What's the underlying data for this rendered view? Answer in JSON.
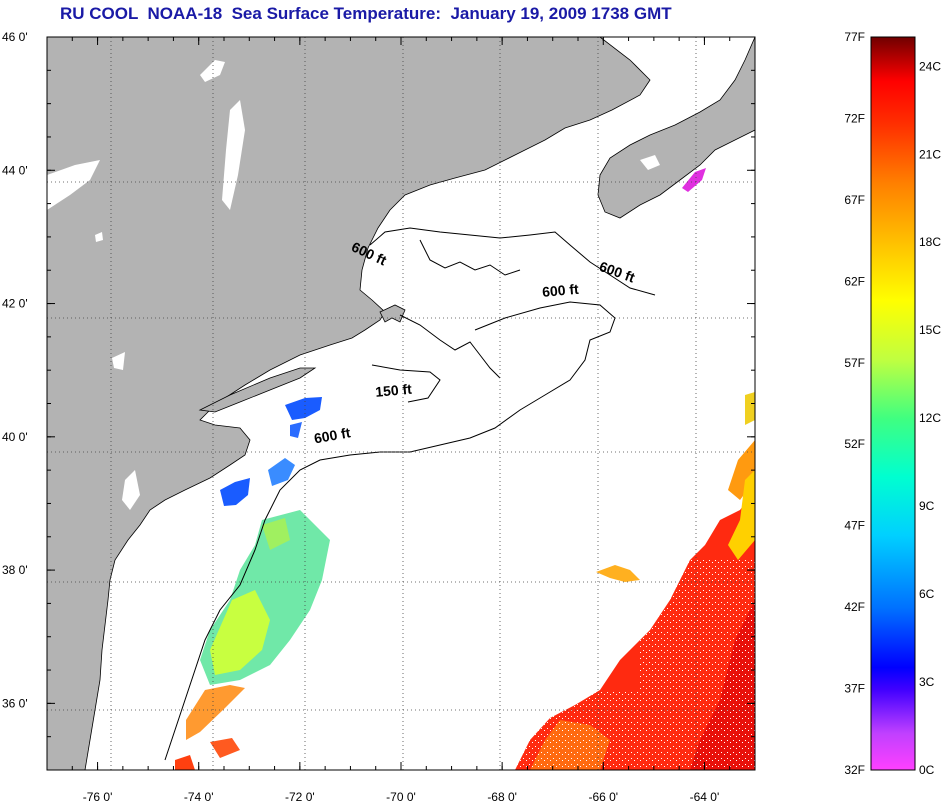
{
  "title": "RU COOL  NOAA-18  Sea Surface Temperature:  January 19, 2009 1738 GMT",
  "colors": {
    "title": "#1a1aa6",
    "land": "#b3b3b3",
    "ocean_no_data": "#ffffff",
    "grid": "#555555",
    "coast": "#000000"
  },
  "map": {
    "lon_range": [
      -77.0,
      -63.0
    ],
    "lat_range": [
      35.0,
      46.0
    ],
    "x_ticks": [
      {
        "lon": -76,
        "label": "-76 0'"
      },
      {
        "lon": -74,
        "label": "-74 0'"
      },
      {
        "lon": -72,
        "label": "-72 0'"
      },
      {
        "lon": -70,
        "label": "-70 0'"
      },
      {
        "lon": -68,
        "label": "-68 0'"
      },
      {
        "lon": -66,
        "label": "-66 0'"
      },
      {
        "lon": -64,
        "label": "-64 0'"
      }
    ],
    "y_ticks": [
      {
        "lat": 46,
        "label": "46 0'"
      },
      {
        "lat": 44,
        "label": "44 0'"
      },
      {
        "lat": 42,
        "label": "42 0'"
      },
      {
        "lat": 40,
        "label": "40 0'"
      },
      {
        "lat": 38,
        "label": "38 0'"
      },
      {
        "lat": 36,
        "label": "36 0'"
      }
    ],
    "contour_labels": [
      {
        "text": "600 ft",
        "lon": -71.0,
        "lat": 42.8,
        "rotate": 25
      },
      {
        "text": "600 ft",
        "lon": -66.1,
        "lat": 42.5,
        "rotate": 20
      },
      {
        "text": "600 ft",
        "lon": -67.2,
        "lat": 42.1,
        "rotate": -5
      },
      {
        "text": "150 ft",
        "lon": -70.5,
        "lat": 40.6,
        "rotate": -5
      },
      {
        "text": "600 ft",
        "lon": -71.7,
        "lat": 39.9,
        "rotate": -10
      }
    ]
  },
  "colorbar": {
    "f_labels": [
      "77F",
      "72F",
      "67F",
      "62F",
      "57F",
      "52F",
      "47F",
      "42F",
      "37F",
      "32F"
    ],
    "c_labels": [
      "24C",
      "21C",
      "18C",
      "15C",
      "12C",
      "9C",
      "6C",
      "3C",
      "0C"
    ],
    "f_range": [
      32,
      77
    ],
    "stops": [
      "#ff40ff",
      "#c040ff",
      "#4000ff",
      "#0000ff",
      "#0070ff",
      "#00d0ff",
      "#00ffd0",
      "#40ff80",
      "#c0ff40",
      "#ffff00",
      "#ffc000",
      "#ff8000",
      "#ff3000",
      "#ff0000",
      "#a00000",
      "#700000"
    ]
  }
}
